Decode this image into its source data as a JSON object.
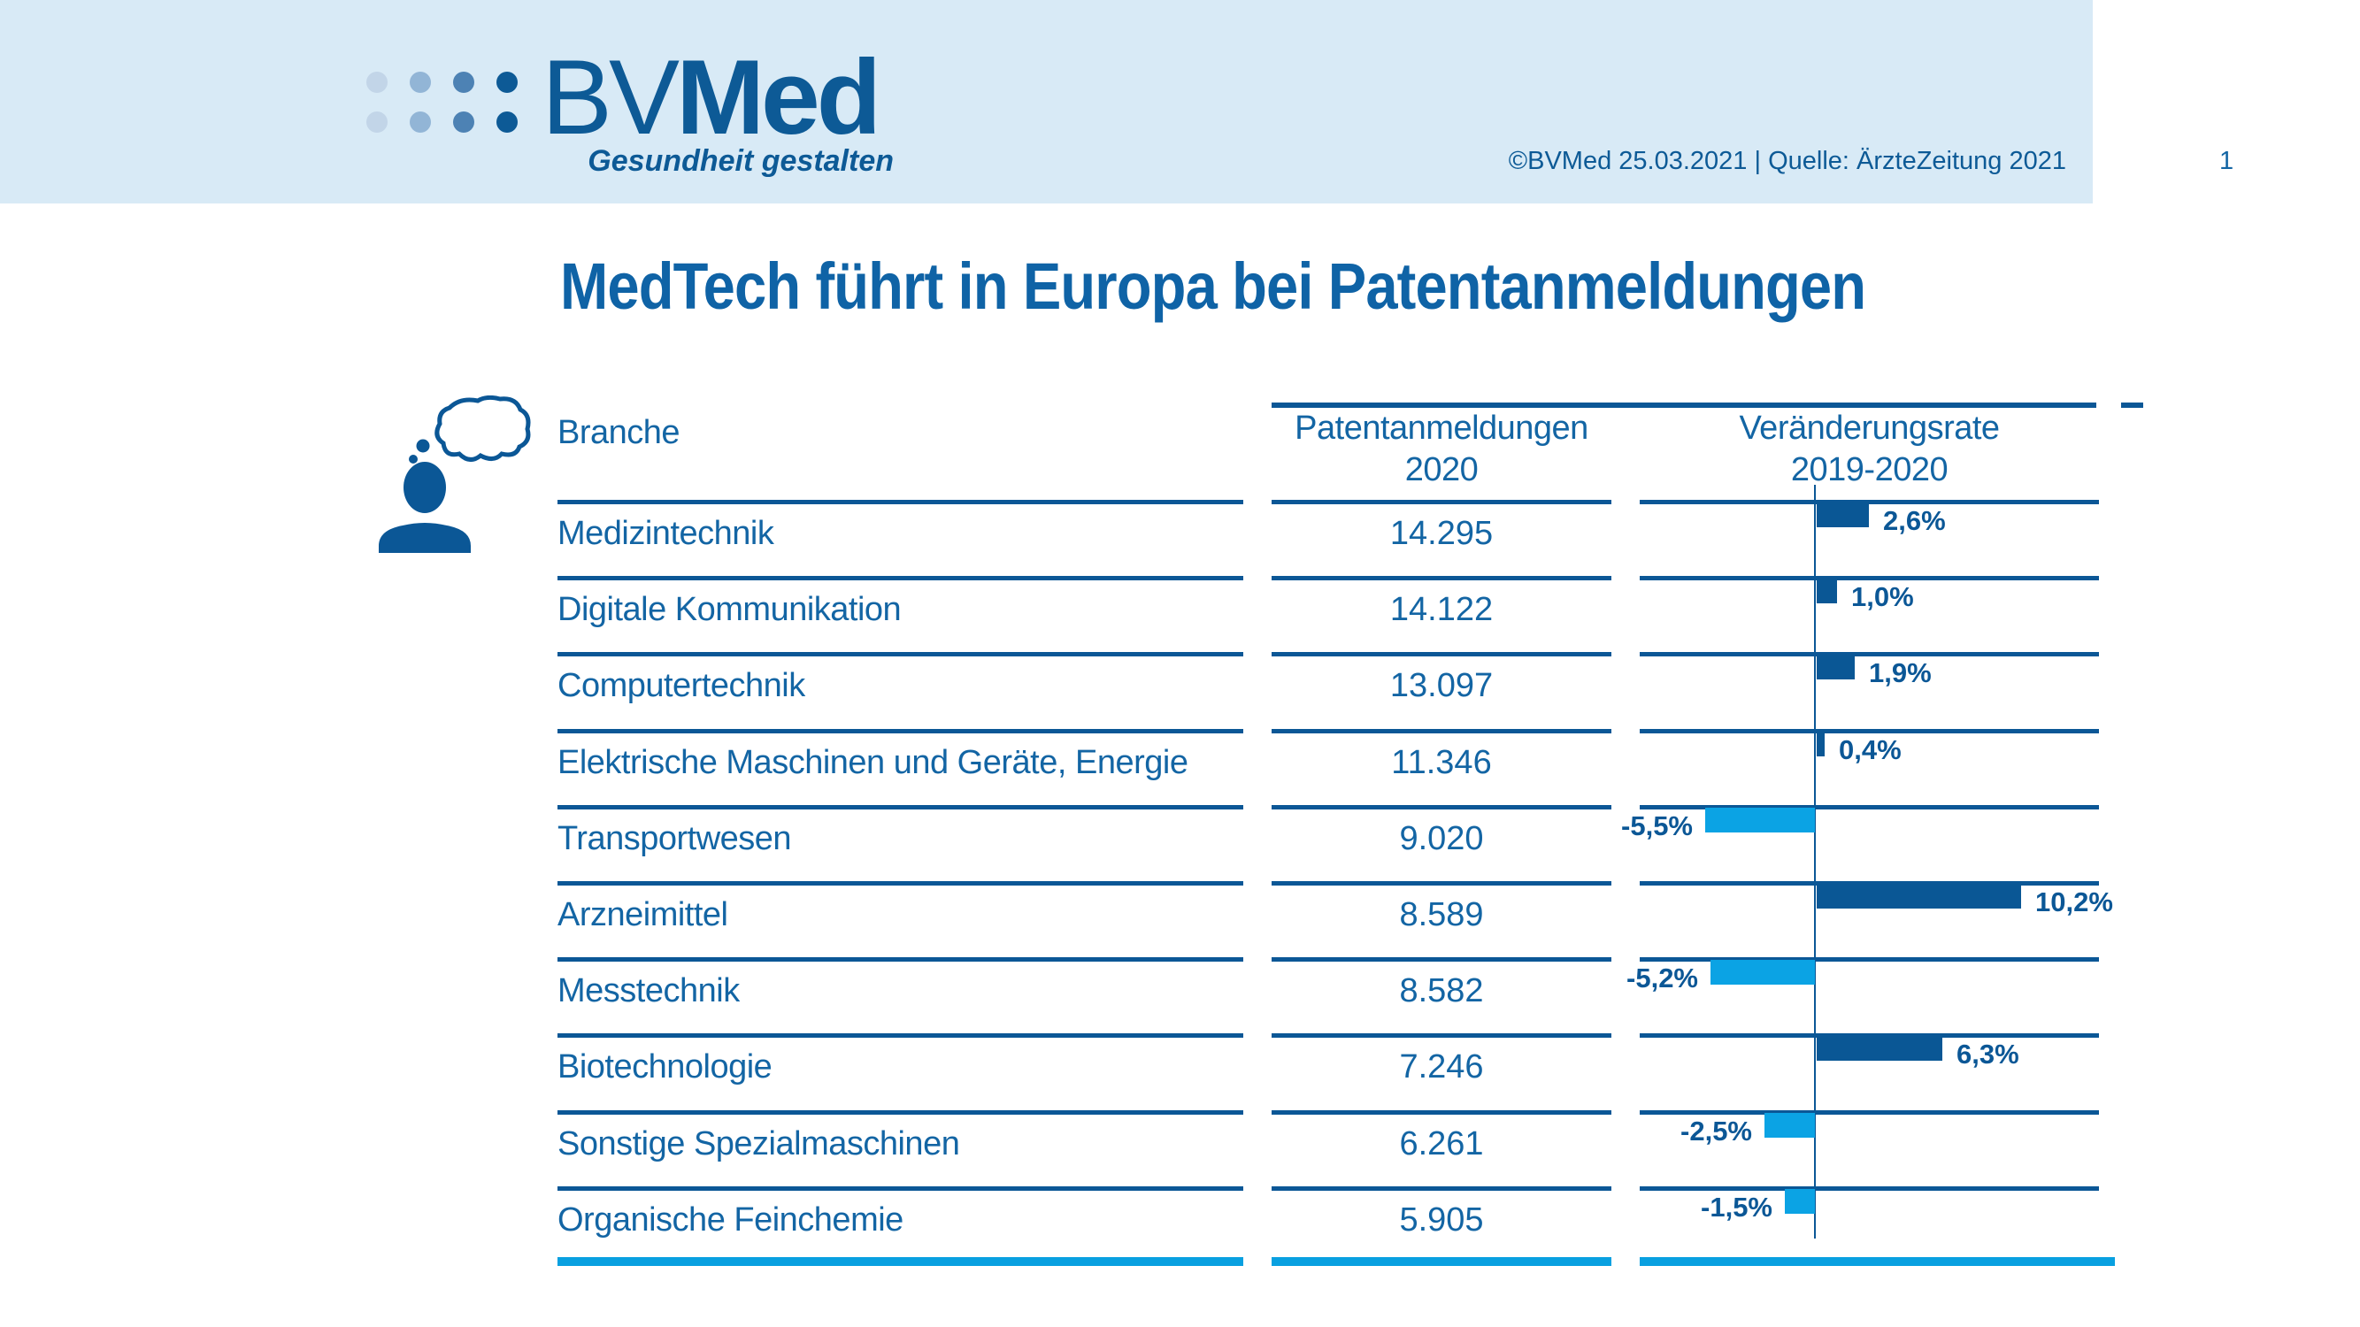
{
  "header": {
    "logo": {
      "wordmark_bv": "BV",
      "wordmark_med": "Med",
      "tagline": "Gesundheit gestalten",
      "dot_colors": [
        "#c2d5e8",
        "#92b5d6",
        "#4d82b4",
        "#0d5a96"
      ]
    },
    "credit": "©BVMed 25.03.2021 | Quelle: ÄrzteZeitung 2021",
    "page_number": "1"
  },
  "title": "MedTech führt in Europa bei Patentanmeldungen",
  "table": {
    "col_branche": "Branche",
    "col_patent_line1": "Patentanmeldungen",
    "col_patent_line2": "2020",
    "col_rate_line1": "Veränderungsrate",
    "col_rate_line2": "2019-2020"
  },
  "rows": [
    {
      "branche": "Medizintechnik",
      "patente": "14.295",
      "rate": 2.6,
      "rate_label": "2,6%"
    },
    {
      "branche": "Digitale Kommunikation",
      "patente": "14.122",
      "rate": 1.0,
      "rate_label": "1,0%"
    },
    {
      "branche": "Computertechnik",
      "patente": "13.097",
      "rate": 1.9,
      "rate_label": "1,9%"
    },
    {
      "branche": "Elektrische Maschinen und Geräte, Energie",
      "patente": "11.346",
      "rate": 0.4,
      "rate_label": "0,4%"
    },
    {
      "branche": "Transportwesen",
      "patente": "9.020",
      "rate": -5.5,
      "rate_label": "-5,5%"
    },
    {
      "branche": "Arzneimittel",
      "patente": "8.589",
      "rate": 10.2,
      "rate_label": "10,2%"
    },
    {
      "branche": "Messtechnik",
      "patente": "8.582",
      "rate": -5.2,
      "rate_label": "-5,2%"
    },
    {
      "branche": "Biotechnologie",
      "patente": "7.246",
      "rate": 6.3,
      "rate_label": "6,3%"
    },
    {
      "branche": "Sonstige Spezialmaschinen",
      "patente": "6.261",
      "rate": -2.5,
      "rate_label": "-2,5%"
    },
    {
      "branche": "Organische Feinchemie",
      "patente": "5.905",
      "rate": -1.5,
      "rate_label": "-1,5%"
    }
  ],
  "colors": {
    "band_light_blue": "#d8eaf6",
    "dark_blue": "#0b5796",
    "text_blue": "#1365a4",
    "positive_bar": "#0a5795",
    "negative_bar": "#0ba3e4",
    "bottom_line": "#09a0e0"
  },
  "chart_data": {
    "type": "bar",
    "orientation": "horizontal",
    "title": "MedTech führt in Europa bei Patentanmeldungen",
    "categories": [
      "Medizintechnik",
      "Digitale Kommunikation",
      "Computertechnik",
      "Elektrische Maschinen und Geräte, Energie",
      "Transportwesen",
      "Arzneimittel",
      "Messtechnik",
      "Biotechnologie",
      "Sonstige Spezialmaschinen",
      "Organische Feinchemie"
    ],
    "series": [
      {
        "name": "Patentanmeldungen 2020",
        "values": [
          14295,
          14122,
          13097,
          11346,
          9020,
          8589,
          8582,
          7246,
          6261,
          5905
        ]
      },
      {
        "name": "Veränderungsrate 2019-2020 (%)",
        "values": [
          2.6,
          1.0,
          1.9,
          0.4,
          -5.5,
          10.2,
          -5.2,
          6.3,
          -2.5,
          -1.5
        ]
      }
    ],
    "value_labels": [
      "2,6%",
      "1,0%",
      "1,9%",
      "0,4%",
      "-5,5%",
      "10,2%",
      "-5,2%",
      "6,3%",
      "-2,5%",
      "-1,5%"
    ],
    "xlim_percent": [
      -6,
      11
    ],
    "grid": false,
    "legend_position": "none"
  }
}
